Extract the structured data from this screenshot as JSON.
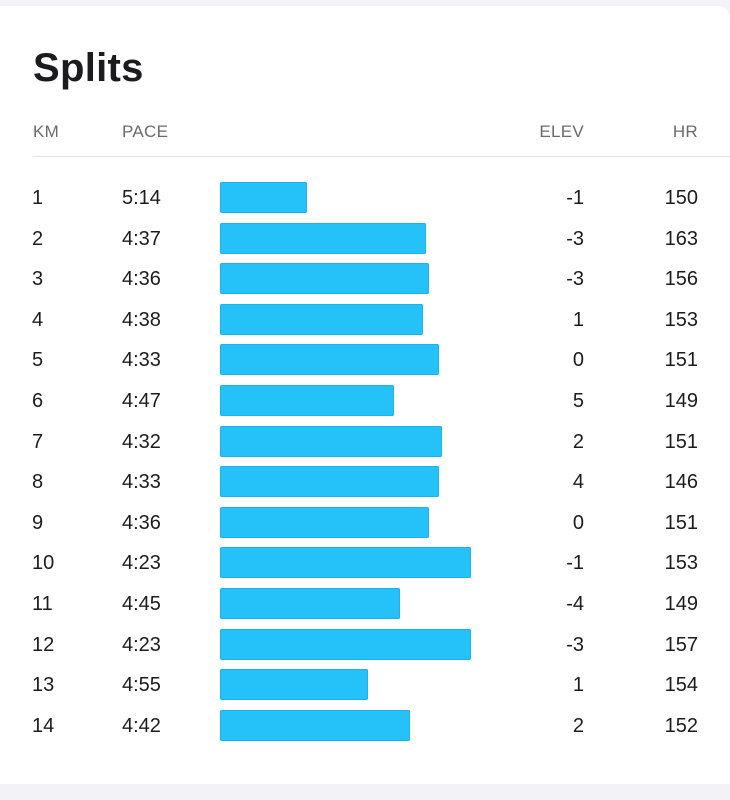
{
  "title": "Splits",
  "columns": {
    "km": "KM",
    "pace": "PACE",
    "elev": "ELEV",
    "hr": "HR"
  },
  "colors": {
    "bar": "#25c2fa",
    "header_text": "#6b6b70"
  },
  "splits": [
    {
      "km": "1",
      "pace": "5:14",
      "elev": "-1",
      "hr": "150",
      "pace_seconds": 314
    },
    {
      "km": "2",
      "pace": "4:37",
      "elev": "-3",
      "hr": "163",
      "pace_seconds": 277
    },
    {
      "km": "3",
      "pace": "4:36",
      "elev": "-3",
      "hr": "156",
      "pace_seconds": 276
    },
    {
      "km": "4",
      "pace": "4:38",
      "elev": "1",
      "hr": "153",
      "pace_seconds": 278
    },
    {
      "km": "5",
      "pace": "4:33",
      "elev": "0",
      "hr": "151",
      "pace_seconds": 273
    },
    {
      "km": "6",
      "pace": "4:47",
      "elev": "5",
      "hr": "149",
      "pace_seconds": 287
    },
    {
      "km": "7",
      "pace": "4:32",
      "elev": "2",
      "hr": "151",
      "pace_seconds": 272
    },
    {
      "km": "8",
      "pace": "4:33",
      "elev": "4",
      "hr": "146",
      "pace_seconds": 273
    },
    {
      "km": "9",
      "pace": "4:36",
      "elev": "0",
      "hr": "151",
      "pace_seconds": 276
    },
    {
      "km": "10",
      "pace": "4:23",
      "elev": "-1",
      "hr": "153",
      "pace_seconds": 263
    },
    {
      "km": "11",
      "pace": "4:45",
      "elev": "-4",
      "hr": "149",
      "pace_seconds": 285
    },
    {
      "km": "12",
      "pace": "4:23",
      "elev": "-3",
      "hr": "157",
      "pace_seconds": 263
    },
    {
      "km": "13",
      "pace": "4:55",
      "elev": "1",
      "hr": "154",
      "pace_seconds": 295
    },
    {
      "km": "14",
      "pace": "4:42",
      "elev": "2",
      "hr": "152",
      "pace_seconds": 282
    }
  ]
}
